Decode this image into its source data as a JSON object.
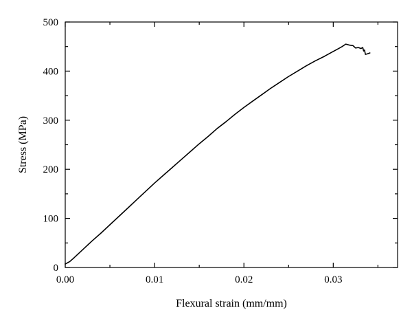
{
  "chart_data": {
    "type": "line",
    "title": "",
    "xlabel": "Flexural strain (mm/mm)",
    "ylabel": "Stress (MPa)",
    "xlim": [
      0,
      0.0372
    ],
    "ylim": [
      0,
      500
    ],
    "xticks": [
      0,
      0.01,
      0.02,
      0.03
    ],
    "xtick_labels": [
      "0.00",
      "0.01",
      "0.02",
      "0.03"
    ],
    "yticks": [
      0,
      100,
      200,
      300,
      400,
      500
    ],
    "ytick_labels": [
      "0",
      "100",
      "200",
      "300",
      "400",
      "500"
    ],
    "grid": false,
    "legend": "none",
    "colors": {
      "series": "#000000",
      "axes": "#000000"
    },
    "series": [
      {
        "x": [
          0.0,
          0.0005,
          0.001,
          0.002,
          0.003,
          0.004,
          0.005,
          0.006,
          0.007,
          0.008,
          0.009,
          0.01,
          0.011,
          0.012,
          0.013,
          0.014,
          0.015,
          0.016,
          0.017,
          0.018,
          0.019,
          0.02,
          0.021,
          0.022,
          0.023,
          0.024,
          0.025,
          0.026,
          0.027,
          0.028,
          0.029,
          0.03,
          0.0305,
          0.031,
          0.0314,
          0.0318,
          0.0322,
          0.0325,
          0.0328,
          0.0331,
          0.0333,
          0.0334,
          0.0335,
          0.0336,
          0.0338,
          0.0341
        ],
        "y": [
          7,
          12,
          20,
          37,
          54,
          70,
          87,
          104,
          121,
          138,
          155,
          172,
          188,
          204,
          220,
          236,
          252,
          267,
          283,
          297,
          312,
          326,
          339,
          352,
          365,
          377,
          389,
          400,
          411,
          421,
          430,
          440,
          445,
          450,
          455,
          453,
          452,
          447,
          448,
          446,
          448,
          441,
          443,
          434,
          435,
          437
        ]
      }
    ]
  }
}
